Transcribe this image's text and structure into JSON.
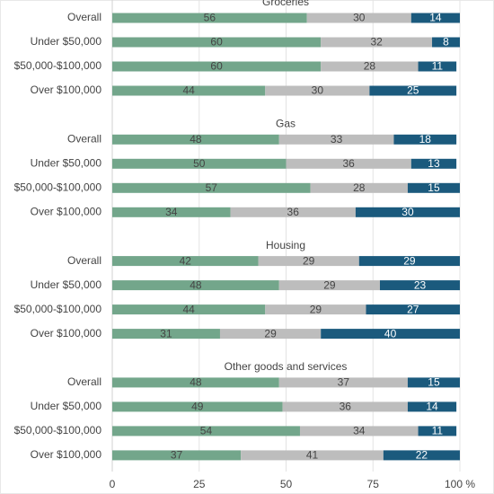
{
  "chart_data": [
    {
      "type": "bar",
      "orientation": "horizontal",
      "stacked": true,
      "title": "Groceries",
      "categories": [
        "Overall",
        "Under $50,000",
        "$50,000-$100,000",
        "Over $100,000"
      ],
      "series": [
        {
          "color": "#73a68b",
          "values": [
            56,
            60,
            60,
            44
          ]
        },
        {
          "color": "#bdbdbd",
          "values": [
            30,
            32,
            28,
            30
          ]
        },
        {
          "color": "#1b5a7d",
          "values": [
            14,
            8,
            11,
            25
          ]
        }
      ]
    },
    {
      "type": "bar",
      "orientation": "horizontal",
      "stacked": true,
      "title": "Gas",
      "categories": [
        "Overall",
        "Under $50,000",
        "$50,000-$100,000",
        "Over $100,000"
      ],
      "series": [
        {
          "color": "#73a68b",
          "values": [
            48,
            50,
            57,
            34
          ]
        },
        {
          "color": "#bdbdbd",
          "values": [
            33,
            36,
            28,
            36
          ]
        },
        {
          "color": "#1b5a7d",
          "values": [
            18,
            13,
            15,
            30
          ]
        }
      ]
    },
    {
      "type": "bar",
      "orientation": "horizontal",
      "stacked": true,
      "title": "Housing",
      "categories": [
        "Overall",
        "Under $50,000",
        "$50,000-$100,000",
        "Over $100,000"
      ],
      "series": [
        {
          "color": "#73a68b",
          "values": [
            42,
            48,
            44,
            31
          ]
        },
        {
          "color": "#bdbdbd",
          "values": [
            29,
            29,
            29,
            29
          ]
        },
        {
          "color": "#1b5a7d",
          "values": [
            29,
            23,
            27,
            40
          ]
        }
      ]
    },
    {
      "type": "bar",
      "orientation": "horizontal",
      "stacked": true,
      "title": "Other goods and services",
      "categories": [
        "Overall",
        "Under $50,000",
        "$50,000-$100,000",
        "Over $100,000"
      ],
      "series": [
        {
          "color": "#73a68b",
          "values": [
            48,
            49,
            54,
            37
          ]
        },
        {
          "color": "#bdbdbd",
          "values": [
            37,
            36,
            34,
            41
          ]
        },
        {
          "color": "#1b5a7d",
          "values": [
            15,
            14,
            11,
            22
          ]
        }
      ],
      "xlim": [
        0,
        100
      ],
      "xticks": [
        0,
        25,
        50,
        75,
        {
          "value": 100,
          "label": "100 %"
        }
      ],
      "grid": true
    }
  ]
}
